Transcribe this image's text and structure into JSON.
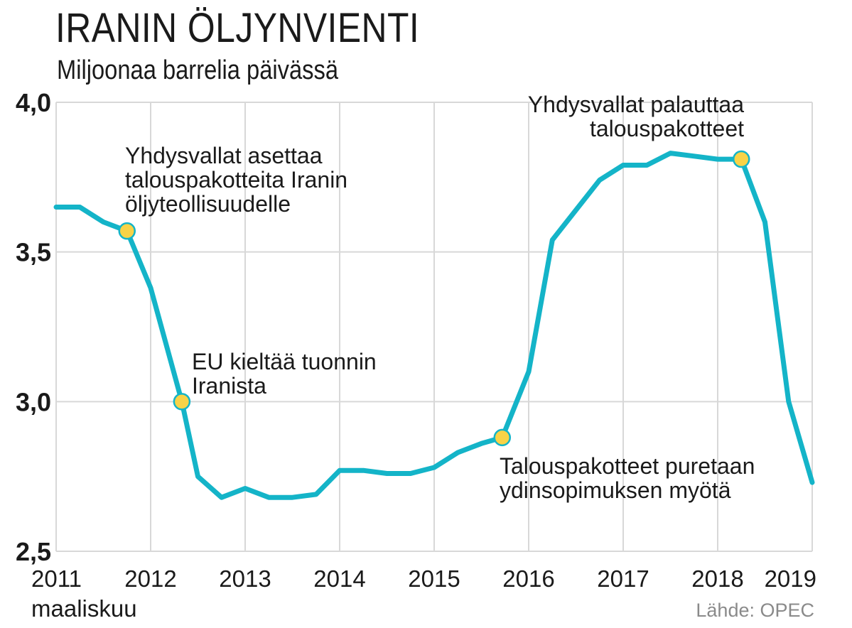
{
  "chart_data": {
    "type": "line",
    "title": "IRANIN ÖLJYNVIENTI",
    "subtitle": "Miljoonaa barrelia päivässä",
    "ylim": [
      2.5,
      4.0
    ],
    "y_ticks": [
      {
        "value": 4.0,
        "label": "4,0"
      },
      {
        "value": 3.5,
        "label": "3,5"
      },
      {
        "value": 3.0,
        "label": "3,0"
      },
      {
        "value": 2.5,
        "label": "2,5"
      }
    ],
    "xlim": [
      2011,
      2019
    ],
    "x_ticks": [
      {
        "value": 2011,
        "label": "2011"
      },
      {
        "value": 2012,
        "label": "2012"
      },
      {
        "value": 2013,
        "label": "2013"
      },
      {
        "value": 2014,
        "label": "2014"
      },
      {
        "value": 2015,
        "label": "2015"
      },
      {
        "value": 2016,
        "label": "2016"
      },
      {
        "value": 2017,
        "label": "2017"
      },
      {
        "value": 2018,
        "label": "2018"
      },
      {
        "value": 2019,
        "label": "2019"
      }
    ],
    "x_start_note": "maaliskuu",
    "series": [
      {
        "name": "Iranin öljynvienti",
        "color": "#14b4c8",
        "x": [
          2011.0,
          2011.25,
          2011.5,
          2011.75,
          2012.0,
          2012.33,
          2012.5,
          2012.75,
          2013.0,
          2013.25,
          2013.5,
          2013.75,
          2014.0,
          2014.25,
          2014.5,
          2014.75,
          2015.0,
          2015.25,
          2015.5,
          2015.72,
          2016.0,
          2016.25,
          2016.5,
          2016.75,
          2017.0,
          2017.25,
          2017.5,
          2017.75,
          2018.0,
          2018.25,
          2018.5,
          2018.75,
          2019.0
        ],
        "y": [
          3.65,
          3.65,
          3.6,
          3.57,
          3.38,
          3.0,
          2.75,
          2.68,
          2.71,
          2.68,
          2.68,
          2.69,
          2.77,
          2.77,
          2.76,
          2.76,
          2.78,
          2.83,
          2.86,
          2.88,
          3.1,
          3.54,
          3.64,
          3.74,
          3.79,
          3.79,
          3.83,
          3.82,
          3.81,
          3.81,
          3.6,
          3.0,
          2.73
        ]
      }
    ],
    "events": [
      {
        "x": 2011.75,
        "y": 3.57,
        "lines": [
          "Yhdysvallat asettaa",
          "talouspakotteita Iranin",
          "öljyteollisuudelle"
        ]
      },
      {
        "x": 2012.33,
        "y": 3.0,
        "lines": [
          "EU kieltää tuonnin",
          "Iranista"
        ]
      },
      {
        "x": 2015.72,
        "y": 2.88,
        "lines": [
          "Talouspakotteet puretaan",
          "ydinsopimuksen myötä"
        ]
      },
      {
        "x": 2018.25,
        "y": 3.81,
        "lines": [
          "Yhdysvallat palauttaa",
          "talouspakotteet"
        ]
      }
    ],
    "source": "Lähde: OPEC",
    "accent_color": "#14b4c8",
    "marker_color": "#f8d347"
  }
}
